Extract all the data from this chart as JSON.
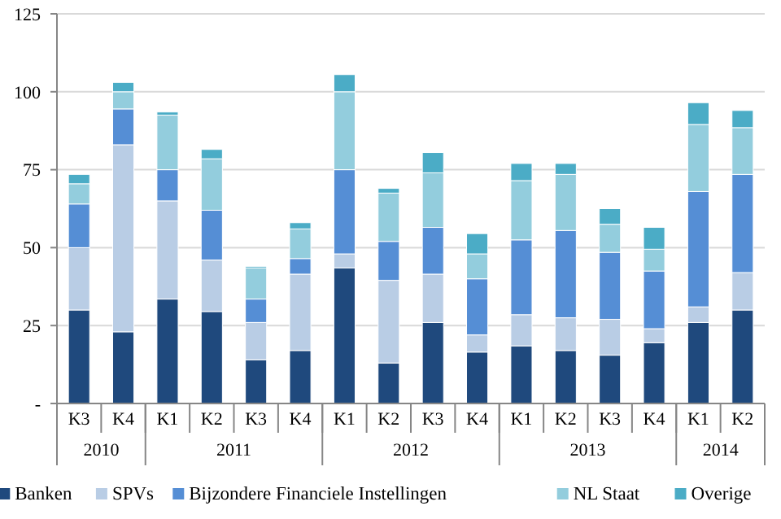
{
  "chart_data": {
    "type": "bar",
    "stacked": true,
    "categories": [
      "K3",
      "K4",
      "K1",
      "K2",
      "K3",
      "K4",
      "K1",
      "K2",
      "K3",
      "K4",
      "K1",
      "K2",
      "K3",
      "K4",
      "K1",
      "K2"
    ],
    "annotations": [
      "2010",
      "2011",
      "2012",
      "2013",
      "2014"
    ],
    "series": [
      {
        "name": "Banken",
        "color": "#1f497d",
        "values": [
          30,
          23,
          33.5,
          29.5,
          14,
          17,
          43.5,
          13,
          26,
          16.5,
          18.5,
          17,
          15.5,
          19.5,
          26,
          30
        ]
      },
      {
        "name": "SPVs",
        "color": "#b9cde5",
        "values": [
          20,
          60,
          31.5,
          16.5,
          12,
          24.5,
          4.5,
          26.5,
          15.5,
          5.5,
          10,
          10.5,
          11.5,
          4.5,
          5,
          12
        ]
      },
      {
        "name": "Bijzondere Financiele Instellingen",
        "color": "#558ed5",
        "values": [
          14,
          11.5,
          10,
          16,
          7.5,
          5,
          27,
          12.5,
          15,
          18,
          24,
          28,
          21.5,
          18.5,
          37,
          31.5
        ]
      },
      {
        "name": "NL Staat",
        "color": "#93cddd",
        "values": [
          6.5,
          5.5,
          17.5,
          16.5,
          10,
          9.5,
          25,
          15.5,
          17.5,
          8,
          19,
          18,
          9,
          7,
          21.5,
          15
        ]
      },
      {
        "name": "Overige",
        "color": "#4bacc6",
        "values": [
          3,
          3,
          1,
          3,
          0.5,
          2,
          5.5,
          1.5,
          6.5,
          6.5,
          5.5,
          3.5,
          5,
          7,
          7,
          5.5
        ]
      }
    ],
    "ylim": [
      0,
      125
    ],
    "yticks": [
      {
        "value": 0,
        "label": "-"
      },
      25,
      50,
      75,
      100,
      125
    ],
    "grid": "y",
    "legend": "bottom"
  }
}
